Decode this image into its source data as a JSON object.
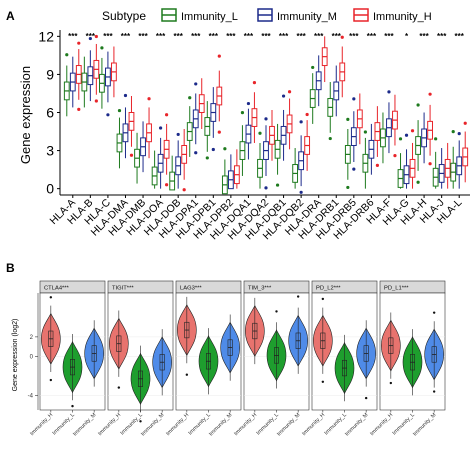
{
  "panel_a": {
    "label": "A",
    "legend_title": "Subtype",
    "legend_entries": [
      "Immunity_L",
      "Immunity_M",
      "Immunity_H"
    ],
    "colors": {
      "Immunity_L": "#1e7a1e",
      "Immunity_M": "#1c2a8a",
      "Immunity_H": "#e8242a"
    }
  },
  "panel_b": {
    "label": "B",
    "colors": {
      "Immunity_H": "#e8736e",
      "Immunity_L": "#1e9e2e",
      "Immunity_M": "#4f8be8",
      "strip": "#d9d9d9"
    }
  },
  "chart_data": [
    {
      "type": "box",
      "ylabel": "Gene expression",
      "ylim": [
        -0.5,
        12.5
      ],
      "yticks": [
        0,
        3,
        6,
        9,
        12
      ],
      "series_names": [
        "Immunity_L",
        "Immunity_M",
        "Immunity_H"
      ],
      "categories": [
        "HLA-A",
        "HLA-B",
        "HLA-C",
        "HLA-DMA",
        "HLA-DMB",
        "HLA-DOA",
        "HLA-DOB",
        "HLA-DPA1",
        "HLA-DPB1",
        "HLA-DPB2",
        "HLA-DQA1",
        "HLA-DQA2",
        "HLA-DQB1",
        "HLA-DQB2",
        "HLA-DRA",
        "HLA-DRB1",
        "HLA-DRB5",
        "HLA-DRB6",
        "HLA-F",
        "HLA-G",
        "HLA-H",
        "HLA-J",
        "HLA-L"
      ],
      "significance": [
        "***",
        "***",
        "***",
        "***",
        "***",
        "***",
        "***",
        "***",
        "***",
        "***",
        "***",
        "***",
        "***",
        "***",
        "***",
        "***",
        "***",
        "***",
        "***",
        "*",
        "***",
        "***",
        "***"
      ],
      "medians": [
        [
          7.7,
          8.4,
          9.0
        ],
        [
          8.4,
          8.9,
          9.4
        ],
        [
          8.3,
          8.8,
          9.2
        ],
        [
          3.6,
          4.4,
          5.3
        ],
        [
          2.4,
          3.3,
          4.4
        ],
        [
          1.0,
          2.0,
          3.1
        ],
        [
          0.6,
          1.8,
          2.7
        ],
        [
          4.5,
          5.5,
          6.7
        ],
        [
          4.9,
          6.0,
          7.3
        ],
        [
          0.3,
          0.7,
          1.1
        ],
        [
          3.0,
          4.3,
          5.6
        ],
        [
          1.6,
          3.0,
          4.2
        ],
        [
          3.1,
          4.2,
          5.1
        ],
        [
          1.2,
          2.2,
          3.4
        ],
        [
          7.1,
          8.5,
          10.4
        ],
        [
          6.4,
          7.7,
          9.2
        ],
        [
          2.7,
          4.1,
          5.5
        ],
        [
          2.0,
          3.1,
          4.5
        ],
        [
          4.0,
          4.8,
          5.4
        ],
        [
          0.8,
          1.1,
          1.6
        ],
        [
          3.4,
          4.0,
          4.6
        ],
        [
          0.9,
          1.2,
          1.6
        ],
        [
          1.3,
          1.8,
          2.5
        ]
      ]
    },
    {
      "type": "violin",
      "ylabel": "Gene expression (log2)",
      "ylim": [
        -5.5,
        6.5
      ],
      "yticks": [
        -4,
        0,
        2
      ],
      "ytick_labels": [
        "-4",
        "0",
        "2"
      ],
      "x_labels": [
        "Immunity_H",
        "Immunity_L",
        "Immunity_M"
      ],
      "facets": [
        "CTLA4***",
        "TIGIT***",
        "LAG3***",
        "TIM_3***",
        "PD_L2***",
        "PD_L1***"
      ],
      "medians": [
        [
          1.8,
          -1.1,
          0.3
        ],
        [
          1.3,
          -2.3,
          -0.6
        ],
        [
          2.7,
          -0.5,
          0.9
        ],
        [
          2.6,
          0.1,
          1.6
        ],
        [
          1.6,
          -1.2,
          0.3
        ],
        [
          1.1,
          -0.6,
          0.2
        ]
      ]
    }
  ]
}
